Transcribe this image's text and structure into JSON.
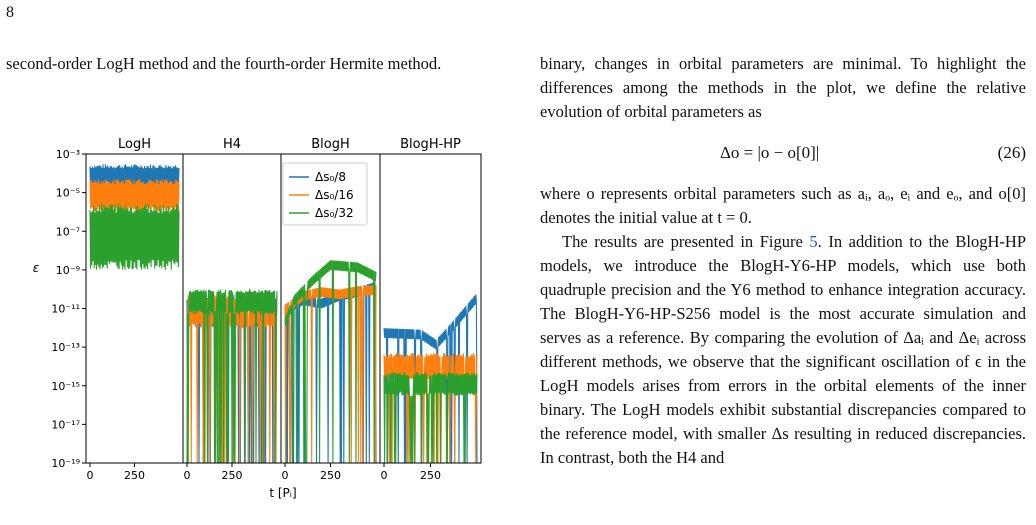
{
  "page_number": "8",
  "left_text": "second-order LogH method and the fourth-order Hermite method.",
  "right": {
    "p1": "binary, changes in orbital parameters are minimal. To highlight the differences among the methods in the plot, we define the relative evolution of orbital parameters as",
    "equation": "Δo = |o − o[0]|",
    "equation_number": "(26)",
    "p2": "where o represents orbital parameters such as aᵢ, aₒ, eᵢ and eₒ, and o[0] denotes the initial value at t = 0.",
    "p3_before_link": "The results are presented in Figure ",
    "p3_link": "5",
    "p3_after_link": ". In addition to the BlogH-HP models, we introduce the BlogH-Y6-HP models, which use both quadruple precision and the Y6 method to enhance integration accuracy. The BlogH-Y6-HP-S256 model is the most accurate simulation and serves as a reference. By comparing the evolution of Δaᵢ and Δeᵢ across different methods, we observe that the significant oscillation of ϵ in the LogH models arises from errors in the orbital elements of the inner binary. The LogH models exhibit substantial discrepancies compared to the reference model, with smaller Δs resulting in reduced discrepancies. In contrast, both the H4 and"
  },
  "figure": {
    "colors": {
      "blue": "#1f77b4",
      "orange": "#ff7f0e",
      "green": "#2ca02c"
    },
    "chart_data": {
      "type": "line",
      "panels": [
        "LogH",
        "H4",
        "BlogH",
        "BlogH-HP"
      ],
      "ylabel": "ε",
      "xlabel": "t [Pᵢ]",
      "yscale": "log",
      "ylim": [
        1e-19,
        0.001
      ],
      "xlim": [
        0,
        500
      ],
      "y_ticks": [
        "10⁻³",
        "10⁻⁵",
        "10⁻⁷",
        "10⁻⁹",
        "10⁻¹¹",
        "10⁻¹³",
        "10⁻¹⁵",
        "10⁻¹⁷",
        "10⁻¹⁹"
      ],
      "x_ticks": [
        "0",
        "250"
      ],
      "legend_position": "upper-right of BlogH panel",
      "series": [
        {
          "name": "Δs₀/8",
          "color": "#1f77b4",
          "panels": {
            "LogH": {
              "band": [
                1e-05,
                0.0003
              ]
            },
            "H4": {
              "band": [
                1e-12,
                5e-11
              ]
            },
            "BlogH": {
              "curve_mean": [
                [
                  0,
                  1e-11
                ],
                [
                  100,
                  3e-11
                ],
                [
                  200,
                  2e-11
                ],
                [
                  300,
                  5e-11
                ],
                [
                  400,
                  8e-11
                ],
                [
                  500,
                  1.5e-10
                ]
              ]
            },
            "BlogH-HP": {
              "curve_mean": [
                [
                  0,
                  6e-13
                ],
                [
                  200,
                  5e-13
                ],
                [
                  280,
                  1.5e-13
                ],
                [
                  350,
                  8e-13
                ],
                [
                  500,
                  4e-11
                ]
              ]
            }
          }
        },
        {
          "name": "Δs₀/16",
          "color": "#ff7f0e",
          "panels": {
            "LogH": {
              "band": [
                1e-06,
                5e-05
              ]
            },
            "H4": {
              "band": [
                1e-12,
                5e-11
              ]
            },
            "BlogH": {
              "curve_mean": [
                [
                  0,
                  1e-11
                ],
                [
                  100,
                  5e-11
                ],
                [
                  200,
                  8e-11
                ],
                [
                  300,
                  6e-11
                ],
                [
                  400,
                  9e-11
                ],
                [
                  500,
                  1e-10
                ]
              ]
            },
            "BlogH-HP": {
              "band": [
                2e-15,
                5e-14
              ]
            }
          }
        },
        {
          "name": "Δs₀/32",
          "color": "#2ca02c",
          "panels": {
            "LogH": {
              "band": [
                1e-09,
                3e-06
              ]
            },
            "H4": {
              "band": [
                5e-12,
                1e-10
              ]
            },
            "BlogH": {
              "curve_mean": [
                [
                  0,
                  2e-12
                ],
                [
                  50,
                  3e-11
                ],
                [
                  150,
                  3e-10
                ],
                [
                  250,
                  2e-09
                ],
                [
                  400,
                  1.5e-09
                ],
                [
                  500,
                  5e-10
                ]
              ]
            },
            "BlogH-HP": {
              "band": [
                3e-16,
                5e-15
              ]
            }
          }
        }
      ]
    }
  }
}
